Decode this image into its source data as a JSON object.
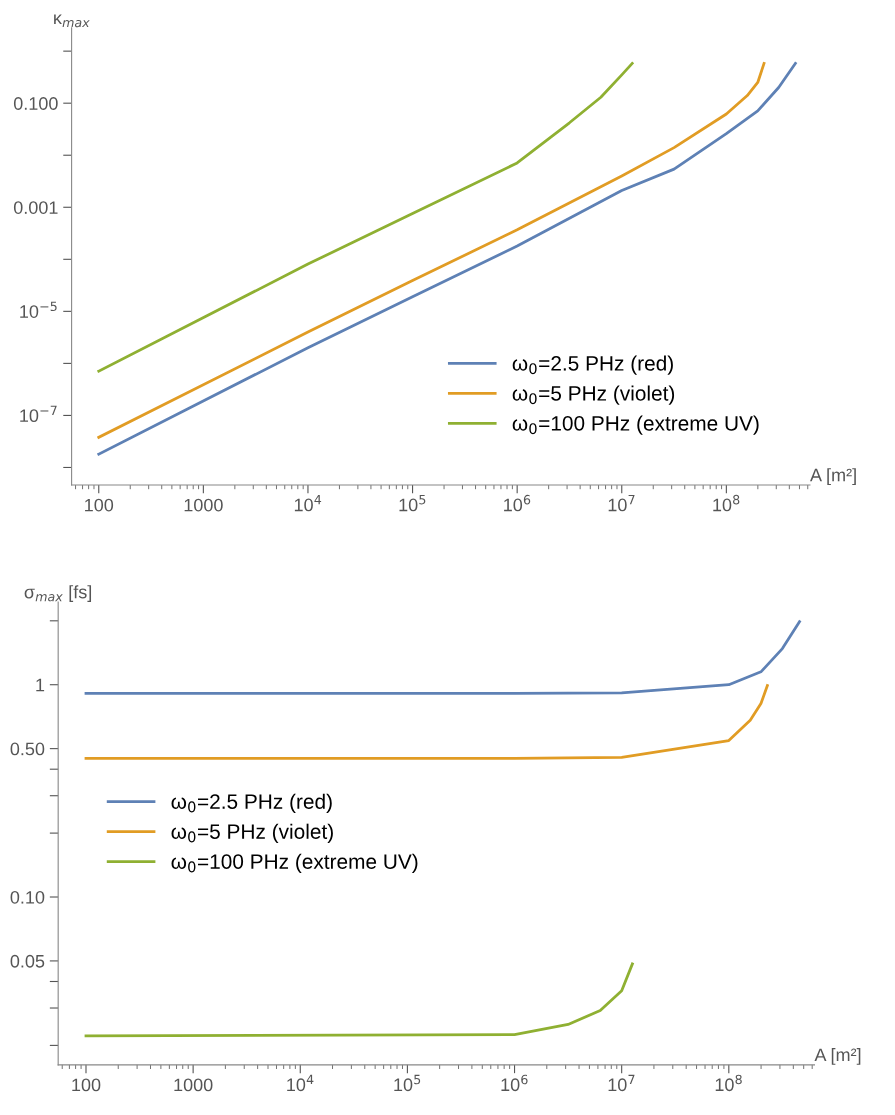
{
  "chart_data": [
    {
      "type": "line",
      "log": "xy",
      "xlabel": "A [m²]",
      "ylabel": "κ$_{max}$",
      "xlim": [
        55,
        630000000
      ],
      "ylim": [
        4.6e-09,
        2.8
      ],
      "xticks": [
        100,
        1000,
        {
          "value": 10000,
          "label": "10$^{4}$"
        },
        {
          "value": 100000,
          "label": "10$^{5}$"
        },
        {
          "value": 1000000,
          "label": "10$^{6}$"
        },
        {
          "value": 10000000,
          "label": "10$^{7}$"
        },
        {
          "value": 100000000,
          "label": "10$^{8}$"
        }
      ],
      "yticks": [
        {
          "value": 1e-08,
          "label": null
        },
        {
          "value": 1e-07,
          "label": "10$^{−7}$"
        },
        {
          "value": 1e-06,
          "label": null
        },
        {
          "value": 1e-05,
          "label": "10$^{−5}$"
        },
        {
          "value": 0.0001,
          "label": null
        },
        {
          "value": 0.001,
          "label": "0.001"
        },
        {
          "value": 0.01,
          "label": null
        },
        {
          "value": 0.1,
          "label": "0.100"
        },
        {
          "value": 1,
          "label": null
        }
      ],
      "legend": "lower right",
      "grid": false,
      "marker": "none",
      "line_style": "solid",
      "series": [
        {
          "name": "ω$_{0}$=2.5 PHz (red)",
          "color": "#5e81b5",
          "x": [
            100,
            10000,
            100000,
            1000000,
            10000000,
            31622777,
            100000000,
            199526231,
            316227766,
            457088190
          ],
          "values": [
            1.8e-08,
            2e-06,
            1.9e-05,
            0.00018,
            0.0021,
            0.0054,
            0.026,
            0.071,
            0.2,
            0.58
          ]
        },
        {
          "name": "ω$_{0}$=5 PHz (violet)",
          "color": "#e19c24",
          "x": [
            100,
            10000,
            100000,
            1000000,
            10000000,
            31622777,
            100000000,
            158489319,
            199526231,
            229086765
          ],
          "values": [
            3.8e-08,
            4e-06,
            3.9e-05,
            0.00037,
            0.004,
            0.014,
            0.062,
            0.14,
            0.25,
            0.58
          ]
        },
        {
          "name": "ω$_{0}$=100 PHz (extreme UV)",
          "color": "#8fb032",
          "x": [
            100,
            10000,
            100000,
            1000000,
            3162278,
            6309573,
            10000000,
            12589254
          ],
          "values": [
            7.1e-07,
            8.1e-05,
            0.00076,
            0.0071,
            0.042,
            0.13,
            0.35,
            0.58
          ]
        }
      ]
    },
    {
      "type": "line",
      "log": "xy",
      "xlabel": "A [m²]",
      "ylabel": "σ$_{max}$ [fs]",
      "xlim": [
        55,
        630000000
      ],
      "ylim": [
        0.0162,
        2.45
      ],
      "xticks": [
        100,
        1000,
        {
          "value": 10000,
          "label": "10$^{4}$"
        },
        {
          "value": 100000,
          "label": "10$^{5}$"
        },
        {
          "value": 1000000,
          "label": "10$^{6}$"
        },
        {
          "value": 10000000,
          "label": "10$^{7}$"
        },
        {
          "value": 100000000,
          "label": "10$^{8}$"
        }
      ],
      "yticks": [
        {
          "value": 0.02,
          "label": null
        },
        {
          "value": 0.03,
          "label": null
        },
        {
          "value": 0.04,
          "label": null
        },
        {
          "value": 0.05,
          "label": "0.05"
        },
        {
          "value": 0.1,
          "label": "0.10"
        },
        {
          "value": 0.2,
          "label": null
        },
        {
          "value": 0.3,
          "label": null
        },
        {
          "value": 0.4,
          "label": null
        },
        {
          "value": 0.5,
          "label": "0.50"
        },
        {
          "value": 1,
          "label": "1"
        },
        {
          "value": 2,
          "label": null
        }
      ],
      "legend": "center left",
      "grid": false,
      "marker": "none",
      "line_style": "solid",
      "series": [
        {
          "name": "ω$_{0}$=2.5 PHz (red)",
          "color": "#5e81b5",
          "x": [
            100,
            1000000,
            10000000,
            100000000,
            199526231,
            316227766,
            457088190
          ],
          "values": [
            0.91,
            0.91,
            0.915,
            1.0,
            1.15,
            1.48,
            1.98
          ]
        },
        {
          "name": "ω$_{0}$=5 PHz (violet)",
          "color": "#e19c24",
          "x": [
            100,
            1000000,
            10000000,
            100000000,
            158489319,
            199526231,
            229086765
          ],
          "values": [
            0.45,
            0.45,
            0.455,
            0.546,
            0.68,
            0.815,
            0.99
          ]
        },
        {
          "name": "ω$_{0}$=100 PHz (extreme UV)",
          "color": "#8fb032",
          "x": [
            100,
            1000000,
            3162278,
            6309573,
            10000000,
            12589254
          ],
          "values": [
            0.0222,
            0.0225,
            0.0251,
            0.0292,
            0.0362,
            0.0484
          ]
        }
      ]
    }
  ]
}
